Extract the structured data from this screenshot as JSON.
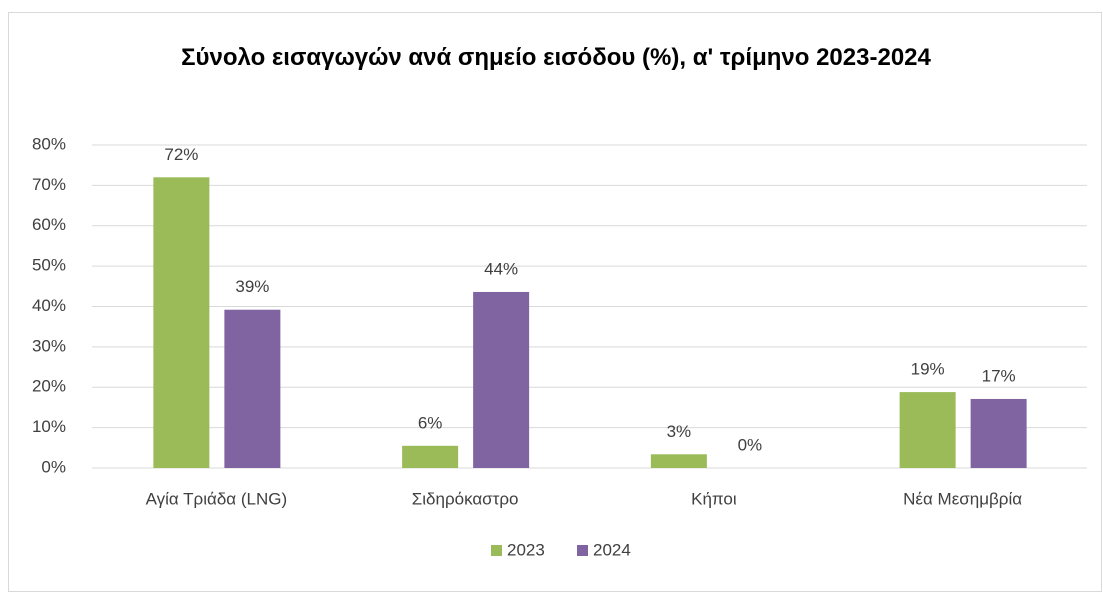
{
  "chart_data": {
    "type": "bar",
    "title": "Σύνολο εισαγωγών ανά σημείο εισόδου (%), α' τρίμηνο 2023-2024",
    "categories": [
      "Αγία Τριάδα (LNG)",
      "Σιδηρόκαστρο",
      "Κήποι",
      "Νέα Μεσημβρία"
    ],
    "series": [
      {
        "name": "2023",
        "color": "#9bbb59",
        "values": [
          72,
          5.5,
          3.4,
          18.8
        ],
        "value_labels": [
          "72%",
          "6%",
          "3%",
          "19%"
        ]
      },
      {
        "name": "2024",
        "color": "#8064a2",
        "values": [
          39.2,
          43.6,
          0,
          17.1
        ],
        "value_labels": [
          "39%",
          "44%",
          "0%",
          "17%"
        ]
      }
    ],
    "ylim": [
      0,
      80
    ],
    "yticks": [
      {
        "value": 0,
        "label": "0%"
      },
      {
        "value": 10,
        "label": "10%"
      },
      {
        "value": 20,
        "label": "20%"
      },
      {
        "value": 30,
        "label": "30%"
      },
      {
        "value": 40,
        "label": "40%"
      },
      {
        "value": 50,
        "label": "50%"
      },
      {
        "value": 60,
        "label": "60%"
      },
      {
        "value": 70,
        "label": "70%"
      },
      {
        "value": 80,
        "label": "80%"
      }
    ],
    "grid": true,
    "legend": "bottom"
  }
}
